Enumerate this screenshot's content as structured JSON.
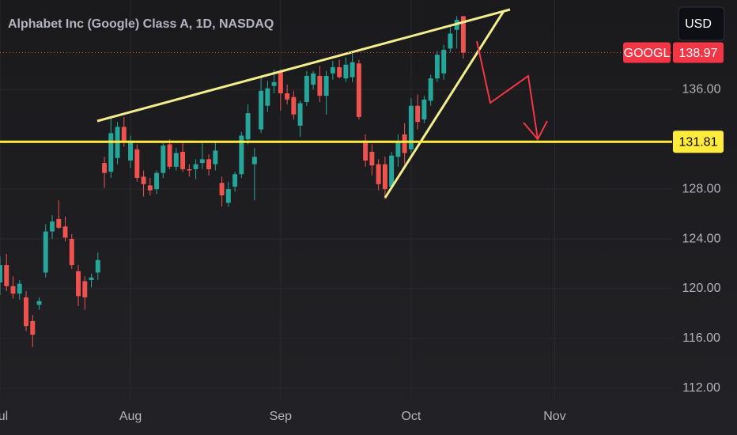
{
  "chart_data": {
    "type": "candlestick",
    "title": "Alphabet Inc (Google) Class A, 1D, NASDAQ",
    "symbol": "GOOGL",
    "currency": "USD",
    "up_color": "#26a69a",
    "down_color": "#ef5350",
    "level": 131.81,
    "level_color": "#ffeb3b",
    "grid": true,
    "ylim": [
      111.1,
      143.2
    ],
    "yticks": [
      {
        "value": 112,
        "label": "112.00"
      },
      {
        "value": 116,
        "label": "116.00"
      },
      {
        "value": 120,
        "label": "120.00"
      },
      {
        "value": 124,
        "label": "124.00"
      },
      {
        "value": 128,
        "label": "128.00"
      },
      {
        "value": 136,
        "label": "136.00"
      }
    ],
    "categories": [
      "Jul",
      null,
      null,
      null,
      null,
      null,
      null,
      null,
      null,
      null,
      null,
      null,
      null,
      null,
      null,
      null,
      null,
      null,
      null,
      null,
      "Aug",
      null,
      null,
      null,
      null,
      null,
      null,
      null,
      null,
      null,
      null,
      null,
      null,
      null,
      null,
      null,
      null,
      null,
      null,
      null,
      null,
      null,
      null,
      "Sep",
      null,
      null,
      null,
      null,
      null,
      null,
      null,
      null,
      null,
      null,
      null,
      null,
      null,
      null,
      null,
      null,
      null,
      null,
      null,
      "Oct",
      null,
      null,
      null,
      null,
      null,
      null,
      null,
      null,
      null,
      null,
      null,
      null,
      null,
      null,
      null,
      null,
      null,
      null,
      null,
      null,
      null,
      "Nov",
      null,
      null,
      null,
      null,
      null,
      null,
      null,
      null,
      null,
      null,
      null,
      null,
      null,
      null,
      null,
      null,
      null
    ],
    "open": [
      120.5,
      121.9,
      120.2,
      119.6,
      119.3,
      117.4,
      118.7,
      121.3,
      124.6,
      125.6,
      125.0,
      124.0,
      121.4,
      120.6,
      120.7,
      121.3,
      130.1,
      129.4,
      130.5,
      133.0,
      130.3,
      131.2,
      129.0,
      128.3,
      128.0,
      129.3,
      131.6,
      129.8,
      131.0,
      129.6,
      129.6,
      130.1,
      130.4,
      130.0,
      128.5,
      126.9,
      128.2,
      129.2,
      132.0,
      130.0,
      132.8,
      134.7,
      136.3,
      137.4,
      135.7,
      135.4,
      133.1,
      135.0,
      136.4,
      137.1,
      135.5,
      137.3,
      137.8,
      136.9,
      137.0,
      138.1,
      131.9,
      131.0,
      130.0,
      130.0,
      128.2,
      130.6,
      132.4,
      131.2,
      134.7,
      133.6,
      135.1,
      136.9,
      137.3,
      139.3,
      140.8,
      141.9,
      null,
      null,
      null,
      null,
      null,
      null,
      null,
      null,
      null,
      null,
      null,
      null,
      null,
      null,
      null,
      null,
      null,
      null,
      null,
      null,
      null,
      null,
      null,
      null,
      null,
      null,
      null,
      null,
      null,
      null,
      null
    ],
    "high": [
      122.6,
      122.8,
      121.0,
      120.7,
      119.8,
      117.9,
      119.3,
      125.2,
      125.9,
      127.1,
      125.8,
      124.4,
      121.9,
      121.0,
      121.2,
      122.9,
      130.6,
      133.7,
      133.4,
      133.8,
      132.3,
      131.6,
      129.5,
      128.9,
      129.5,
      131.7,
      132.0,
      131.3,
      131.8,
      130.0,
      130.4,
      131.7,
      130.8,
      131.9,
      129.0,
      128.6,
      129.4,
      132.6,
      134.8,
      131.3,
      137.0,
      136.7,
      137.6,
      137.6,
      136.4,
      135.9,
      135.1,
      137.5,
      137.5,
      137.9,
      137.5,
      138.3,
      138.4,
      138.6,
      138.9,
      138.4,
      132.4,
      131.6,
      130.4,
      130.6,
      131.0,
      132.4,
      133.3,
      135.3,
      135.6,
      135.5,
      137.2,
      139.1,
      139.6,
      141.0,
      141.9,
      141.9,
      null,
      null,
      null,
      null,
      null,
      null,
      null,
      null,
      null,
      null,
      null,
      null,
      null,
      null,
      null,
      null,
      null,
      null,
      null,
      null,
      null,
      null,
      null,
      null,
      null,
      null,
      null,
      null,
      null,
      null,
      null
    ],
    "low": [
      119.5,
      119.8,
      119.2,
      119.1,
      116.6,
      115.3,
      118.3,
      120.9,
      124.0,
      124.8,
      123.8,
      121.6,
      118.6,
      118.3,
      120.1,
      120.7,
      128.1,
      128.9,
      130.0,
      131.4,
      129.7,
      128.6,
      127.4,
      127.5,
      127.6,
      128.9,
      129.6,
      129.5,
      129.4,
      129.0,
      128.8,
      129.6,
      129.1,
      129.5,
      126.6,
      126.6,
      127.8,
      128.9,
      131.6,
      127.1,
      132.5,
      134.2,
      135.7,
      134.3,
      134.8,
      133.6,
      132.2,
      134.7,
      136.0,
      135.0,
      134.0,
      136.8,
      136.9,
      136.6,
      136.6,
      133.6,
      129.8,
      129.1,
      127.9,
      127.2,
      128.0,
      129.8,
      130.0,
      130.9,
      132.8,
      133.3,
      134.7,
      136.6,
      136.8,
      139.0,
      139.3,
      138.5,
      null,
      null,
      null,
      null,
      null,
      null,
      null,
      null,
      null,
      null,
      null,
      null,
      null,
      null,
      null,
      null,
      null,
      null,
      null,
      null,
      null,
      null,
      null,
      null,
      null,
      null,
      null,
      null,
      null,
      null,
      null
    ],
    "close": [
      121.9,
      120.2,
      119.6,
      120.4,
      117.0,
      116.3,
      119.0,
      124.6,
      125.4,
      124.9,
      124.1,
      121.9,
      119.4,
      119.3,
      120.9,
      122.3,
      129.3,
      132.5,
      133.0,
      131.8,
      131.9,
      128.9,
      128.4,
      127.9,
      129.3,
      131.5,
      129.8,
      130.9,
      129.6,
      129.5,
      130.0,
      130.4,
      129.6,
      131.1,
      127.5,
      128.0,
      129.2,
      132.3,
      134.1,
      130.6,
      135.9,
      136.1,
      136.6,
      135.7,
      135.2,
      134.0,
      134.9,
      137.1,
      137.3,
      135.5,
      137.1,
      137.8,
      137.0,
      138.0,
      138.2,
      133.8,
      130.3,
      129.9,
      128.4,
      128.0,
      130.7,
      131.8,
      130.9,
      134.7,
      133.4,
      135.2,
      136.9,
      138.8,
      139.2,
      140.5,
      141.6,
      138.97,
      null,
      null,
      null,
      null,
      null,
      null,
      null,
      null,
      null,
      null,
      null,
      null,
      null,
      null,
      null,
      null,
      null,
      null,
      null,
      null,
      null,
      null,
      null,
      null,
      null,
      null,
      null,
      null,
      null,
      null,
      null
    ]
  }
}
